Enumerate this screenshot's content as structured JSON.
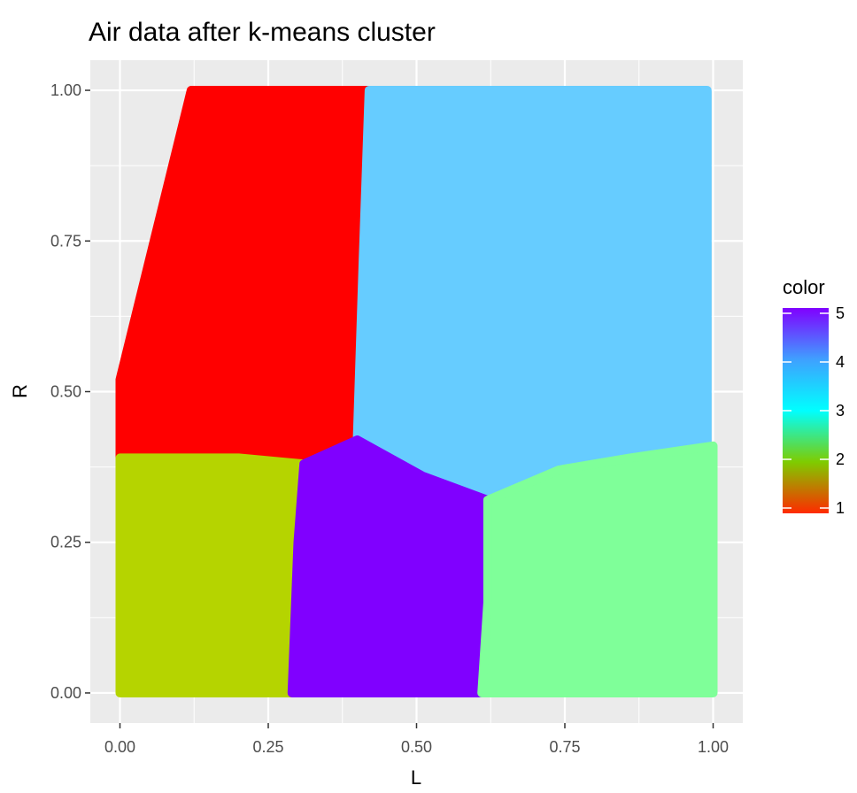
{
  "chart_data": {
    "type": "scatter",
    "title": "Air data after k-means cluster",
    "xlabel": "L",
    "ylabel": "R",
    "xlim": [
      -0.05,
      1.05
    ],
    "ylim": [
      -0.05,
      1.05
    ],
    "x_ticks": [
      0.0,
      0.25,
      0.5,
      0.75,
      1.0
    ],
    "x_tick_labels": [
      "0.00",
      "0.25",
      "0.50",
      "0.75",
      "1.00"
    ],
    "y_ticks": [
      0.0,
      0.25,
      0.5,
      0.75,
      1.0
    ],
    "y_tick_labels": [
      "0.00",
      "0.25",
      "0.50",
      "0.75",
      "1.00"
    ],
    "grid": true,
    "legend": {
      "title": "color",
      "placement": "right",
      "type": "continuous",
      "min": 1,
      "max": 5,
      "tick_values": [
        1,
        2,
        3,
        4,
        5
      ],
      "tick_labels": [
        "1",
        "2",
        "3",
        "4",
        "5"
      ],
      "gradient_colors": [
        "#ff2a00",
        "#7fcc00",
        "#00ffff",
        "#3fa0ff",
        "#8000ff"
      ]
    },
    "clusters": [
      {
        "color": "#ff0000",
        "region": [
          [
            0.0,
            0.39
          ],
          [
            0.0,
            0.52
          ],
          [
            0.12,
            1.0
          ],
          [
            0.42,
            1.0
          ],
          [
            0.41,
            0.72
          ],
          [
            0.4,
            0.42
          ],
          [
            0.31,
            0.38
          ],
          [
            0.2,
            0.38
          ]
        ]
      },
      {
        "color": "#66ccff",
        "region": [
          [
            0.42,
            1.0
          ],
          [
            0.99,
            1.0
          ],
          [
            0.99,
            0.41
          ],
          [
            0.86,
            0.39
          ],
          [
            0.74,
            0.37
          ],
          [
            0.61,
            0.33
          ],
          [
            0.51,
            0.36
          ],
          [
            0.4,
            0.42
          ],
          [
            0.41,
            0.72
          ]
        ]
      },
      {
        "color": "#b5d400",
        "region": [
          [
            0.0,
            0.0
          ],
          [
            0.29,
            0.0
          ],
          [
            0.3,
            0.25
          ],
          [
            0.31,
            0.38
          ],
          [
            0.2,
            0.39
          ],
          [
            0.0,
            0.39
          ]
        ]
      },
      {
        "color": "#8000ff",
        "region": [
          [
            0.29,
            0.0
          ],
          [
            0.61,
            0.0
          ],
          [
            0.62,
            0.15
          ],
          [
            0.62,
            0.32
          ],
          [
            0.51,
            0.36
          ],
          [
            0.4,
            0.42
          ],
          [
            0.31,
            0.38
          ],
          [
            0.3,
            0.25
          ]
        ]
      },
      {
        "color": "#7fff99",
        "region": [
          [
            0.61,
            0.0
          ],
          [
            1.0,
            0.0
          ],
          [
            1.0,
            0.41
          ],
          [
            0.86,
            0.39
          ],
          [
            0.74,
            0.37
          ],
          [
            0.62,
            0.32
          ],
          [
            0.62,
            0.15
          ]
        ]
      }
    ]
  }
}
